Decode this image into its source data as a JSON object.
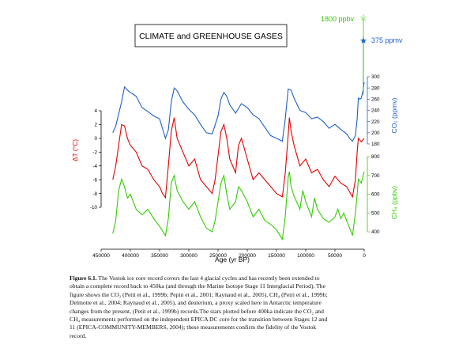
{
  "chart_data": {
    "type": "line",
    "title": "CLIMATE and GREENHOUSE GASES",
    "xlabel": "Age (yr BP)",
    "xlim": [
      450000,
      0
    ],
    "x_ticks": [
      "450000",
      "400000",
      "350000",
      "300000",
      "250000",
      "200000",
      "150000",
      "100000",
      "50000",
      "0"
    ],
    "series": [
      {
        "key": "co2",
        "axis_label": "CO₂ (ppmv)",
        "color": "#1f5fc8",
        "ylim": [
          180,
          300
        ],
        "y_ticks": [
          "300",
          "280",
          "260",
          "240",
          "220",
          "200",
          "180"
        ],
        "star_label": "375 ppmv",
        "star_value": 375,
        "points": [
          [
            430000,
            200
          ],
          [
            425000,
            212
          ],
          [
            415000,
            255
          ],
          [
            410000,
            282
          ],
          [
            405000,
            276
          ],
          [
            400000,
            272
          ],
          [
            390000,
            265
          ],
          [
            380000,
            245
          ],
          [
            370000,
            238
          ],
          [
            360000,
            230
          ],
          [
            350000,
            225
          ],
          [
            340000,
            190
          ],
          [
            335000,
            205
          ],
          [
            330000,
            255
          ],
          [
            325000,
            280
          ],
          [
            320000,
            275
          ],
          [
            310000,
            255
          ],
          [
            300000,
            242
          ],
          [
            290000,
            232
          ],
          [
            280000,
            215
          ],
          [
            270000,
            200
          ],
          [
            260000,
            198
          ],
          [
            250000,
            230
          ],
          [
            245000,
            260
          ],
          [
            240000,
            272
          ],
          [
            235000,
            265
          ],
          [
            230000,
            250
          ],
          [
            220000,
            235
          ],
          [
            210000,
            252
          ],
          [
            200000,
            245
          ],
          [
            190000,
            232
          ],
          [
            180000,
            225
          ],
          [
            170000,
            210
          ],
          [
            160000,
            195
          ],
          [
            150000,
            190
          ],
          [
            140000,
            185
          ],
          [
            135000,
            225
          ],
          [
            130000,
            278
          ],
          [
            125000,
            276
          ],
          [
            120000,
            262
          ],
          [
            110000,
            240
          ],
          [
            100000,
            236
          ],
          [
            90000,
            225
          ],
          [
            80000,
            228
          ],
          [
            70000,
            220
          ],
          [
            60000,
            208
          ],
          [
            50000,
            215
          ],
          [
            40000,
            206
          ],
          [
            30000,
            198
          ],
          [
            25000,
            190
          ],
          [
            20000,
            185
          ],
          [
            15000,
            195
          ],
          [
            12000,
            225
          ],
          [
            10000,
            262
          ],
          [
            7000,
            260
          ],
          [
            5000,
            262
          ],
          [
            2000,
            275
          ],
          [
            0,
            290
          ]
        ]
      },
      {
        "key": "temp",
        "axis_label": "ΔT (°C)",
        "color": "#e00000",
        "ylim": [
          -10,
          4
        ],
        "y_ticks": [
          "4",
          "2",
          "0",
          "-2",
          "-4",
          "-6",
          "-8",
          "-10"
        ],
        "points": [
          [
            430000,
            -6
          ],
          [
            425000,
            -4
          ],
          [
            420000,
            -1
          ],
          [
            415000,
            2
          ],
          [
            410000,
            1.8
          ],
          [
            405000,
            0
          ],
          [
            400000,
            -1
          ],
          [
            390000,
            -2
          ],
          [
            380000,
            -4
          ],
          [
            370000,
            -4.5
          ],
          [
            360000,
            -6
          ],
          [
            350000,
            -7
          ],
          [
            345000,
            -8
          ],
          [
            340000,
            -8.6
          ],
          [
            335000,
            -4
          ],
          [
            330000,
            1
          ],
          [
            325000,
            3
          ],
          [
            320000,
            0
          ],
          [
            310000,
            -2
          ],
          [
            300000,
            -4
          ],
          [
            290000,
            -3
          ],
          [
            280000,
            -6
          ],
          [
            270000,
            -7
          ],
          [
            260000,
            -8
          ],
          [
            255000,
            -6
          ],
          [
            245000,
            1
          ],
          [
            240000,
            2
          ],
          [
            235000,
            0
          ],
          [
            230000,
            -3
          ],
          [
            220000,
            -5
          ],
          [
            215000,
            -1
          ],
          [
            210000,
            0
          ],
          [
            200000,
            -3
          ],
          [
            190000,
            -6
          ],
          [
            180000,
            -5
          ],
          [
            170000,
            -6
          ],
          [
            160000,
            -7
          ],
          [
            150000,
            -8
          ],
          [
            140000,
            -8.5
          ],
          [
            135000,
            -5
          ],
          [
            130000,
            0.5
          ],
          [
            128000,
            3
          ],
          [
            125000,
            1
          ],
          [
            120000,
            -1
          ],
          [
            110000,
            -4
          ],
          [
            100000,
            -3
          ],
          [
            90000,
            -5
          ],
          [
            80000,
            -4.5
          ],
          [
            70000,
            -6
          ],
          [
            60000,
            -7
          ],
          [
            50000,
            -5.5
          ],
          [
            40000,
            -6.5
          ],
          [
            30000,
            -7
          ],
          [
            20000,
            -8.5
          ],
          [
            15000,
            -6
          ],
          [
            12000,
            -2
          ],
          [
            10000,
            0
          ],
          [
            5000,
            -0.5
          ],
          [
            0,
            0
          ]
        ]
      },
      {
        "key": "ch4",
        "axis_label": "CH₄ (ppbv)",
        "color": "#33cc00",
        "ylim": [
          400,
          800
        ],
        "y_ticks": [
          "800",
          "700",
          "600",
          "500",
          "400"
        ],
        "star_label": "1800 ppbv",
        "star_value": 1800,
        "points": [
          [
            430000,
            390
          ],
          [
            425000,
            460
          ],
          [
            420000,
            620
          ],
          [
            415000,
            680
          ],
          [
            410000,
            640
          ],
          [
            405000,
            580
          ],
          [
            400000,
            600
          ],
          [
            390000,
            520
          ],
          [
            380000,
            490
          ],
          [
            370000,
            520
          ],
          [
            360000,
            470
          ],
          [
            350000,
            430
          ],
          [
            340000,
            380
          ],
          [
            335000,
            470
          ],
          [
            330000,
            660
          ],
          [
            325000,
            700
          ],
          [
            320000,
            620
          ],
          [
            310000,
            560
          ],
          [
            300000,
            520
          ],
          [
            290000,
            560
          ],
          [
            280000,
            480
          ],
          [
            270000,
            420
          ],
          [
            260000,
            400
          ],
          [
            255000,
            460
          ],
          [
            245000,
            660
          ],
          [
            240000,
            700
          ],
          [
            235000,
            600
          ],
          [
            230000,
            520
          ],
          [
            220000,
            560
          ],
          [
            215000,
            640
          ],
          [
            210000,
            620
          ],
          [
            200000,
            560
          ],
          [
            190000,
            480
          ],
          [
            180000,
            520
          ],
          [
            170000,
            460
          ],
          [
            160000,
            440
          ],
          [
            150000,
            410
          ],
          [
            140000,
            360
          ],
          [
            135000,
            480
          ],
          [
            130000,
            690
          ],
          [
            128000,
            720
          ],
          [
            125000,
            640
          ],
          [
            120000,
            590
          ],
          [
            110000,
            520
          ],
          [
            105000,
            620
          ],
          [
            100000,
            560
          ],
          [
            90000,
            480
          ],
          [
            85000,
            580
          ],
          [
            80000,
            520
          ],
          [
            70000,
            470
          ],
          [
            60000,
            450
          ],
          [
            50000,
            480
          ],
          [
            45000,
            520
          ],
          [
            40000,
            470
          ],
          [
            35000,
            500
          ],
          [
            30000,
            460
          ],
          [
            20000,
            380
          ],
          [
            15000,
            500
          ],
          [
            12000,
            600
          ],
          [
            10000,
            680
          ],
          [
            5000,
            660
          ],
          [
            0,
            720
          ]
        ]
      }
    ]
  },
  "caption": {
    "label": "Figure 6.1.",
    "lines": [
      " The Vostok ice core record covers the last 4 glacial cycles and has recently been extended to",
      "obtain a complete record back to 450ka (and through the Marine Isotope Stage 11 Interglacial Period). The",
      "figure shows the CO₂ (Petit et al., 1999b; Pepin et al., 2001; Raynaud et al., 2005), CH₄ (Petri et al., 1999b;",
      "Delmotte et al., 2004; Raynaud et al., 2005), and deuterium, a proxy scaled here in Antarctic temperature",
      "changes from the present, (Petit et al., 1999b) records.The stars plotted before 400ka indicate the CO₂ and",
      "CH₄ measurements performed on the independent EPICA DC core for the transition between Stages 12 and",
      "11 (EPICA-COMMUNITY-MEMBERS, 2004); these measurements confirm the fidelity of the Vostok",
      "record."
    ]
  }
}
